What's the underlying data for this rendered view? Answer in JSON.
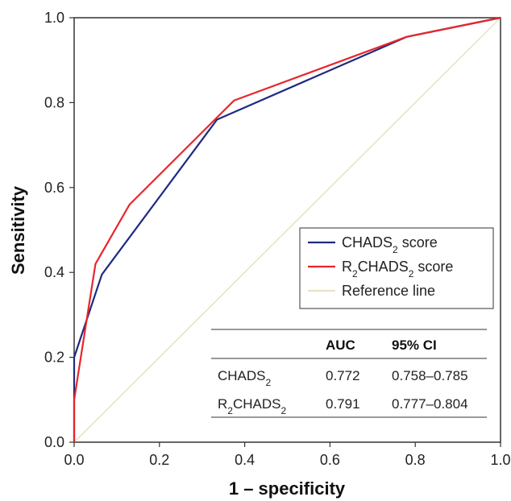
{
  "chart_data": {
    "type": "line",
    "title": "",
    "xlabel": "1 – specificity",
    "ylabel": "Sensitivity",
    "xlim": [
      0,
      1
    ],
    "ylim": [
      0,
      1
    ],
    "x_ticks": [
      "0.0",
      "0.2",
      "0.4",
      "0.6",
      "0.8",
      "1.0"
    ],
    "y_ticks": [
      "0.0",
      "0.2",
      "0.4",
      "0.6",
      "0.8",
      "1.0"
    ],
    "grid": false,
    "legend_position": "lower-right",
    "series": [
      {
        "name": "CHADS score",
        "name_base": "CHADS",
        "name_sub": "2",
        "name_tail": " score",
        "color": "#1f2a80",
        "points": [
          [
            0,
            0
          ],
          [
            0,
            0.2
          ],
          [
            0.065,
            0.395
          ],
          [
            0.335,
            0.76
          ],
          [
            0.78,
            0.955
          ],
          [
            1,
            1
          ]
        ]
      },
      {
        "name": "RCHADS score",
        "name_prefix": "R",
        "name_prefix_sub": "2",
        "name_base": "CHADS",
        "name_sub": "2",
        "name_tail": " score",
        "color": "#e8262b",
        "points": [
          [
            0,
            0
          ],
          [
            0,
            0.1
          ],
          [
            0.05,
            0.42
          ],
          [
            0.13,
            0.56
          ],
          [
            0.375,
            0.805
          ],
          [
            0.78,
            0.955
          ],
          [
            1,
            1
          ]
        ]
      },
      {
        "name": "Reference line",
        "color": "#e6e2c4",
        "points": [
          [
            0,
            0
          ],
          [
            1,
            1
          ]
        ]
      }
    ],
    "table": {
      "headers": [
        "",
        "AUC",
        "95% CI"
      ],
      "rows": [
        {
          "label_prefix": "",
          "label_prefix_sub": "",
          "label_base": "CHADS",
          "label_sub": "2",
          "auc": "0.772",
          "ci": "0.758–0.785"
        },
        {
          "label_prefix": "R",
          "label_prefix_sub": "2",
          "label_base": "CHADS",
          "label_sub": "2",
          "auc": "0.791",
          "ci": "0.777–0.804"
        }
      ]
    }
  }
}
